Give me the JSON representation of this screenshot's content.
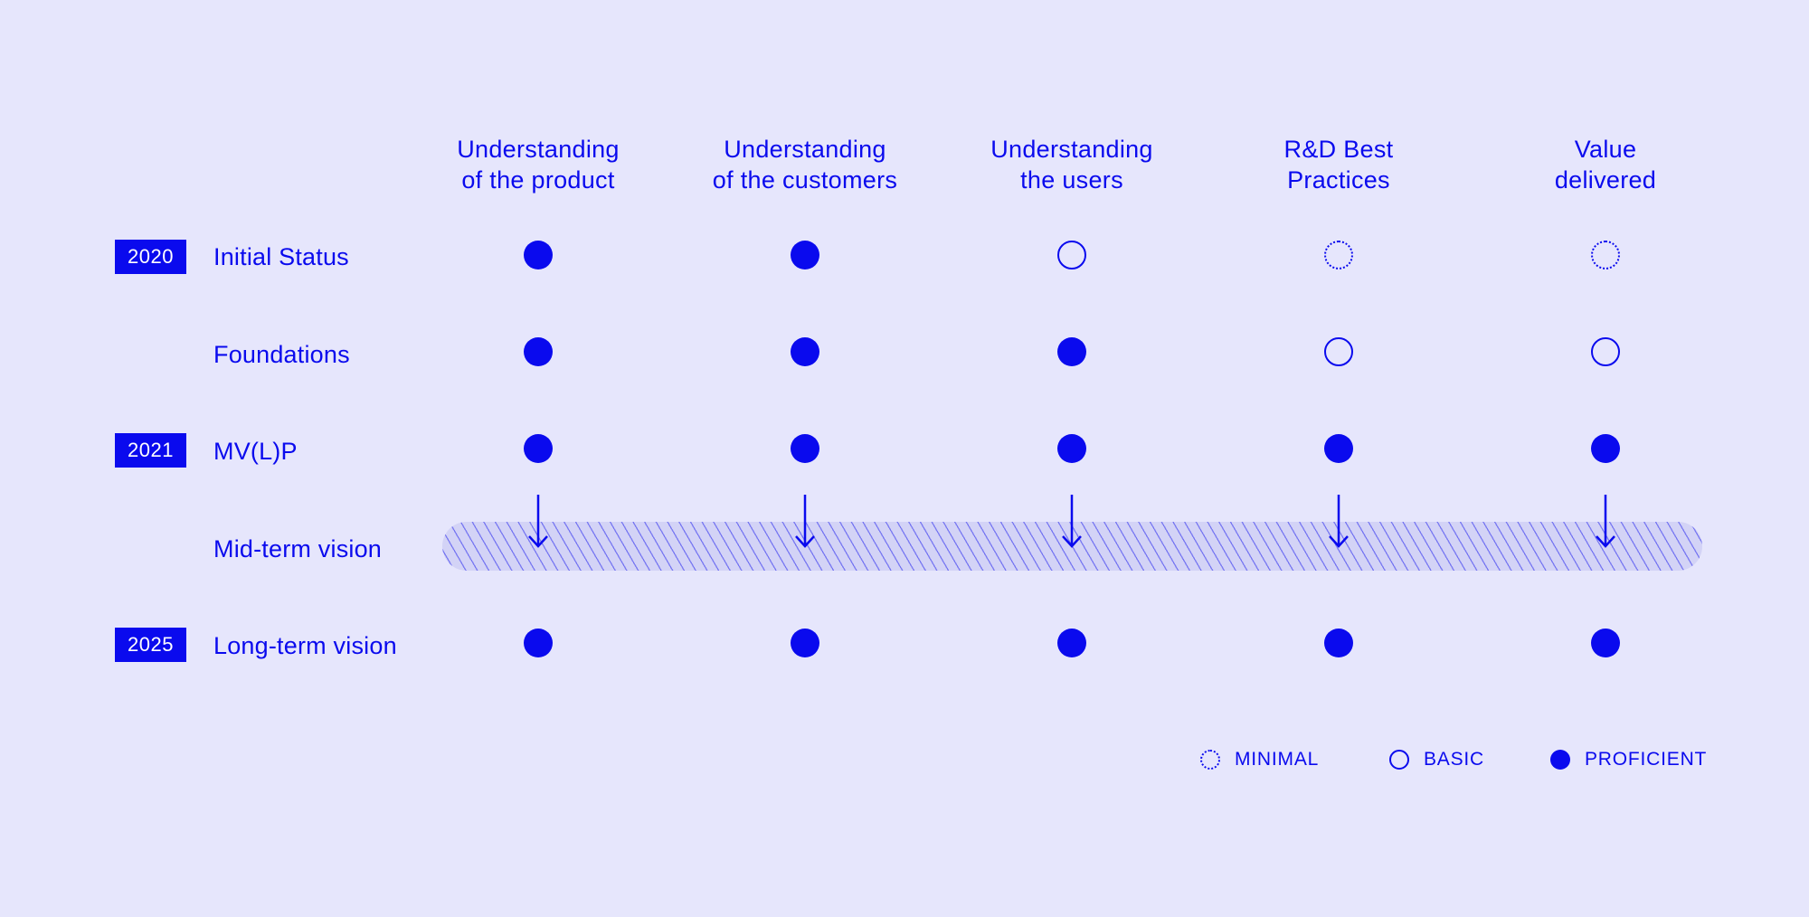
{
  "columns": [
    {
      "line1": "Understanding",
      "line2": "of the product"
    },
    {
      "line1": "Understanding",
      "line2": "of the customers"
    },
    {
      "line1": "Understanding",
      "line2": "the users"
    },
    {
      "line1": "R&D Best",
      "line2": "Practices"
    },
    {
      "line1": "Value",
      "line2": "delivered"
    }
  ],
  "rows": [
    {
      "year": "2020",
      "label": "Initial Status",
      "levels": [
        "proficient",
        "proficient",
        "basic",
        "minimal",
        "minimal"
      ]
    },
    {
      "year": "",
      "label": "Foundations",
      "levels": [
        "proficient",
        "proficient",
        "proficient",
        "basic",
        "basic"
      ]
    },
    {
      "year": "2021",
      "label": "MV(L)P",
      "levels": [
        "proficient",
        "proficient",
        "proficient",
        "proficient",
        "proficient"
      ]
    },
    {
      "year": "",
      "label": "Mid-term vision",
      "levels": []
    },
    {
      "year": "2025",
      "label": "Long-term vision",
      "levels": [
        "proficient",
        "proficient",
        "proficient",
        "proficient",
        "proficient"
      ]
    }
  ],
  "legend": [
    {
      "level": "minimal",
      "label": "MINIMAL"
    },
    {
      "level": "basic",
      "label": "BASIC"
    },
    {
      "level": "proficient",
      "label": "PROFICIENT"
    }
  ],
  "colors": {
    "accent": "#0a0aee",
    "background": "#e6e6fc",
    "band": "#d3d3f6"
  }
}
